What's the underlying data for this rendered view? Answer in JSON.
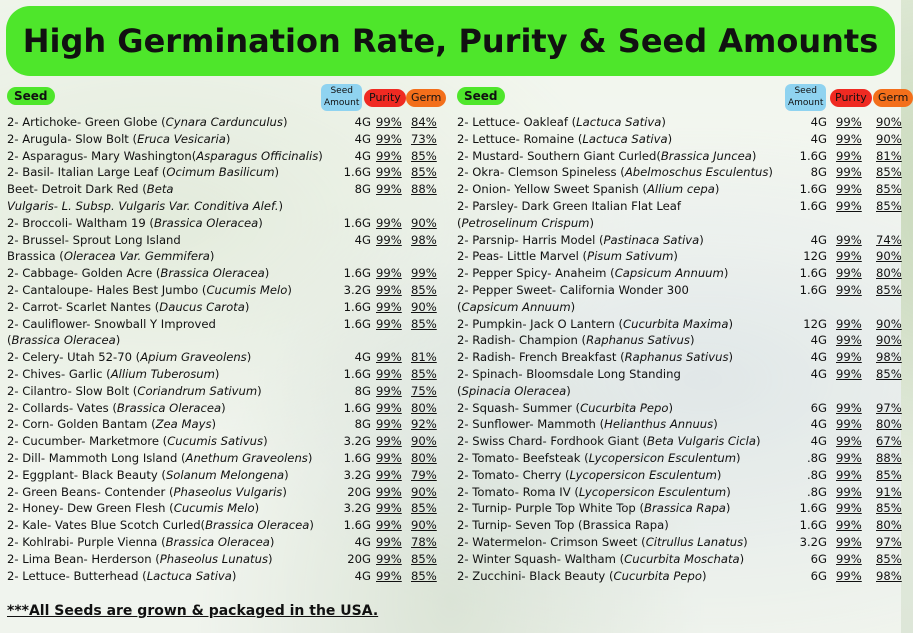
{
  "title": "High Germination Rate, Purity & Seed Amounts",
  "headers": {
    "seed": "Seed",
    "amount_line1": "Seed",
    "amount_line2": "Amount",
    "purity": "Purity",
    "germ": "Germ"
  },
  "colors": {
    "banner": "#4ee62b",
    "seed_pill": "#4ee62b",
    "amount_pill": "#8fd3f0",
    "purity_pill": "#ef2a22",
    "germ_pill": "#f36f1b"
  },
  "left_rows": [
    {
      "name": "2- Artichoke- Green Globe (",
      "sci": "Cynara Cardunculus",
      "tail": ")",
      "amount": "4G",
      "purity": "99%",
      "germ": "84%"
    },
    {
      "name": "2- Arugula- Slow Bolt (",
      "sci": "Eruca Vesicaria",
      "tail": ")",
      "amount": "4G",
      "purity": "99%",
      "germ": "73%"
    },
    {
      "name": "2- Asparagus- Mary Washington(",
      "sci": "Asparagus Officinalis",
      "tail": ")",
      "amount": "4G",
      "purity": "99%",
      "germ": "85%"
    },
    {
      "name": "2- Basil- Italian Large Leaf (",
      "sci": "Ocimum Basilicum",
      "tail": ")",
      "amount": "1.6G",
      "purity": "99%",
      "germ": "85%"
    },
    {
      "name": "Beet- Detroit Dark Red (",
      "sci": "Beta",
      "tail": "",
      "amount": "8G",
      "purity": "99%",
      "germ": "88%"
    },
    {
      "cont": "",
      "cont_sci": "Vulgaris- L. Subsp. Vulgaris Var. Conditiva Alef.",
      "cont_tail": ")"
    },
    {
      "name": "2- Broccoli- Waltham 19 (",
      "sci": "Brassica Oleracea",
      "tail": ")",
      "amount": "1.6G",
      "purity": "99%",
      "germ": "90%"
    },
    {
      "name": "2- Brussel- Sprout Long Island",
      "sci": "",
      "tail": "",
      "amount": "4G",
      "purity": "99%",
      "germ": "98%"
    },
    {
      "cont": "Brassica (",
      "cont_sci": "Oleracea Var. Gemmifera",
      "cont_tail": ")"
    },
    {
      "name": "2- Cabbage- Golden Acre (",
      "sci": "Brassica Oleracea",
      "tail": ")",
      "amount": "1.6G",
      "purity": "99%",
      "germ": "99%"
    },
    {
      "name": "2- Cantaloupe- Hales Best Jumbo (",
      "sci": "Cucumis Melo",
      "tail": ")",
      "amount": "3.2G",
      "purity": "99%",
      "germ": "85%"
    },
    {
      "name": "2- Carrot- Scarlet Nantes (",
      "sci": "Daucus Carota",
      "tail": ")",
      "amount": "1.6G",
      "purity": "99%",
      "germ": "90%"
    },
    {
      "name": "2- Cauliflower- Snowball Y Improved",
      "sci": "",
      "tail": "",
      "amount": "1.6G",
      "purity": "99%",
      "germ": "85%"
    },
    {
      "cont": "(",
      "cont_sci": "Brassica Oleracea",
      "cont_tail": ")"
    },
    {
      "name": "2- Celery- Utah 52-70 (",
      "sci": "Apium Graveolens",
      "tail": ")",
      "amount": "4G",
      "purity": "99%",
      "germ": "81%"
    },
    {
      "name": "2- Chives- Garlic (",
      "sci": "Allium Tuberosum",
      "tail": ")",
      "amount": "1.6G",
      "purity": "99%",
      "germ": "85%"
    },
    {
      "name": "2- Cilantro- Slow Bolt (",
      "sci": "Coriandrum Sativum",
      "tail": ")",
      "amount": "8G",
      "purity": "99%",
      "germ": "75%"
    },
    {
      "name": "2- Collards- Vates (",
      "sci": "Brassica Oleracea",
      "tail": ")",
      "amount": "1.6G",
      "purity": "99%",
      "germ": "80%"
    },
    {
      "name": "2- Corn- Golden Bantam (",
      "sci": "Zea Mays",
      "tail": ")",
      "amount": "8G",
      "purity": "99%",
      "germ": "92%"
    },
    {
      "name": "2- Cucumber- Marketmore (",
      "sci": "Cucumis Sativus",
      "tail": ")",
      "amount": "3.2G",
      "purity": "99%",
      "germ": "90%"
    },
    {
      "name": "2- Dill- Mammoth Long Island (",
      "sci": "Anethum Graveolens",
      "tail": ")",
      "amount": "1.6G",
      "purity": "99%",
      "germ": "80%"
    },
    {
      "name": "2- Eggplant- Black Beauty (",
      "sci": "Solanum Melongena",
      "tail": ")",
      "amount": "3.2G",
      "purity": "99%",
      "germ": "79%"
    },
    {
      "name": "2- Green Beans- Contender (",
      "sci": "Phaseolus Vulgaris",
      "tail": ")",
      "amount": "20G",
      "purity": "99%",
      "germ": "90%"
    },
    {
      "name": "2- Honey- Dew Green Flesh (",
      "sci": "Cucumis Melo",
      "tail": ")",
      "amount": "3.2G",
      "purity": "99%",
      "germ": "85%"
    },
    {
      "name": "2- Kale- Vates Blue Scotch Curled(",
      "sci": "Brassica Oleracea",
      "tail": ")",
      "amount": "1.6G",
      "purity": "99%",
      "germ": "90%"
    },
    {
      "name": "2- Kohlrabi- Purple Vienna (",
      "sci": "Brassica Oleracea",
      "tail": ")",
      "amount": "4G",
      "purity": "99%",
      "germ": "78%"
    },
    {
      "name": "2- Lima Bean- Herderson (",
      "sci": "Phaseolus Lunatus",
      "tail": ")",
      "amount": "20G",
      "purity": "99%",
      "germ": "85%"
    },
    {
      "name": "2- Lettuce- Butterhead (",
      "sci": "Lactuca Sativa",
      "tail": ")",
      "amount": "4G",
      "purity": "99%",
      "germ": "85%"
    }
  ],
  "right_rows": [
    {
      "name": "2- Lettuce- Oakleaf (",
      "sci": "Lactuca Sativa",
      "tail": ")",
      "amount": "4G",
      "purity": "99%",
      "germ": "90%"
    },
    {
      "name": "2- Lettuce- Romaine (",
      "sci": "Lactuca Sativa",
      "tail": ")",
      "amount": "4G",
      "purity": "99%",
      "germ": "90%"
    },
    {
      "name": "2- Mustard-  Southern Giant Curled(",
      "sci": "Brassica Juncea",
      "tail": ")",
      "amount": "1.6G",
      "purity": "99%",
      "germ": "81%"
    },
    {
      "name": "2- Okra- Clemson Spineless (",
      "sci": "Abelmoschus Esculentus",
      "tail": ")",
      "amount": "8G",
      "purity": "99%",
      "germ": "85%"
    },
    {
      "name": "2- Onion- Yellow Sweet Spanish (",
      "sci": "Allium cepa",
      "tail": ")",
      "amount": "1.6G",
      "purity": "99%",
      "germ": "85%"
    },
    {
      "name": "2- Parsley- Dark Green Italian Flat Leaf",
      "sci": "",
      "tail": "",
      "amount": "1.6G",
      "purity": "99%",
      "germ": "85%"
    },
    {
      "cont": "(",
      "cont_sci": "Petroselinum Crispum",
      "cont_tail": ")"
    },
    {
      "name": "2- Parsnip- Harris Model (",
      "sci": "Pastinaca Sativa",
      "tail": ")",
      "amount": "4G",
      "purity": "99%",
      "germ": "74%"
    },
    {
      "name": "2- Peas- Little Marvel (",
      "sci": "Pisum Sativum",
      "tail": ")",
      "amount": "12G",
      "purity": "99%",
      "germ": "90%"
    },
    {
      "name": "2- Pepper Spicy- Anaheim (",
      "sci": "Capsicum Annuum",
      "tail": ")",
      "amount": "1.6G",
      "purity": "99%",
      "germ": "80%"
    },
    {
      "name": "2- Pepper Sweet- California Wonder 300",
      "sci": "",
      "tail": "",
      "amount": "1.6G",
      "purity": "99%",
      "germ": "85%"
    },
    {
      "cont": "(",
      "cont_sci": "Capsicum Annuum",
      "cont_tail": ")"
    },
    {
      "name": "2- Pumpkin- Jack O Lantern (",
      "sci": "Cucurbita Maxima",
      "tail": ")",
      "amount": "12G",
      "purity": "99%",
      "germ": "90%"
    },
    {
      "name": "2- Radish- Champion (",
      "sci": "Raphanus Sativus",
      "tail": ")",
      "amount": "4G",
      "purity": "99%",
      "germ": "90%"
    },
    {
      "name": "2- Radish- French Breakfast (",
      "sci": "Raphanus Sativus",
      "tail": ")",
      "amount": "4G",
      "purity": "99%",
      "germ": "98%"
    },
    {
      "name": "2- Spinach- Bloomsdale Long Standing",
      "sci": "",
      "tail": "",
      "amount": "4G",
      "purity": "99%",
      "germ": "85%"
    },
    {
      "cont": "(",
      "cont_sci": "Spinacia Oleracea",
      "cont_tail": ")"
    },
    {
      "name": "2- Squash- Summer (",
      "sci": "Cucurbita Pepo",
      "tail": ")",
      "amount": "6G",
      "purity": "99%",
      "germ": "97%"
    },
    {
      "name": "2- Sunflower- Mammoth (",
      "sci": "Helianthus Annuus",
      "tail": ")",
      "amount": "4G",
      "purity": "99%",
      "germ": "80%"
    },
    {
      "name": "2- Swiss Chard- Fordhook Giant (",
      "sci": "Beta Vulgaris Cicla",
      "tail": ")",
      "amount": "4G",
      "purity": "99%",
      "germ": "67%"
    },
    {
      "name": "2- Tomato- Beefsteak (",
      "sci": "Lycopersicon Esculentum",
      "tail": ")",
      "amount": ".8G",
      "purity": "99%",
      "germ": "88%"
    },
    {
      "name": "2- Tomato- Cherry (",
      "sci": "Lycopersicon Esculentum",
      "tail": ")",
      "amount": ".8G",
      "purity": "99%",
      "germ": "85%"
    },
    {
      "name": "2- Tomato- Roma IV  (",
      "sci": "Lycopersicon Esculentum",
      "tail": ")",
      "amount": ".8G",
      "purity": "99%",
      "germ": "91%"
    },
    {
      "name": "2- Turnip- Purple Top White Top (",
      "sci": "Brassica Rapa",
      "tail": ")",
      "amount": "1.6G",
      "purity": "99%",
      "germ": "85%"
    },
    {
      "name": "2- Turnip- Seven Top (Brassica Rapa)",
      "sci": "",
      "tail": "",
      "amount": "1.6G",
      "purity": "99%",
      "germ": "80%"
    },
    {
      "name": "2- Watermelon- Crimson Sweet (",
      "sci": "Citrullus Lanatus",
      "tail": ")",
      "amount": "3.2G",
      "purity": "99%",
      "germ": "97%"
    },
    {
      "name": "2- Winter Squash- Waltham (",
      "sci": "Cucurbita Moschata",
      "tail": ")",
      "amount": "6G",
      "purity": "99%",
      "germ": "85%"
    },
    {
      "name": "2- Zucchini-  Black Beauty (",
      "sci": "Cucurbita Pepo",
      "tail": ")",
      "amount": "6G",
      "purity": "99%",
      "germ": "98%"
    }
  ],
  "footer": "***All Seeds are grown & packaged in the USA."
}
